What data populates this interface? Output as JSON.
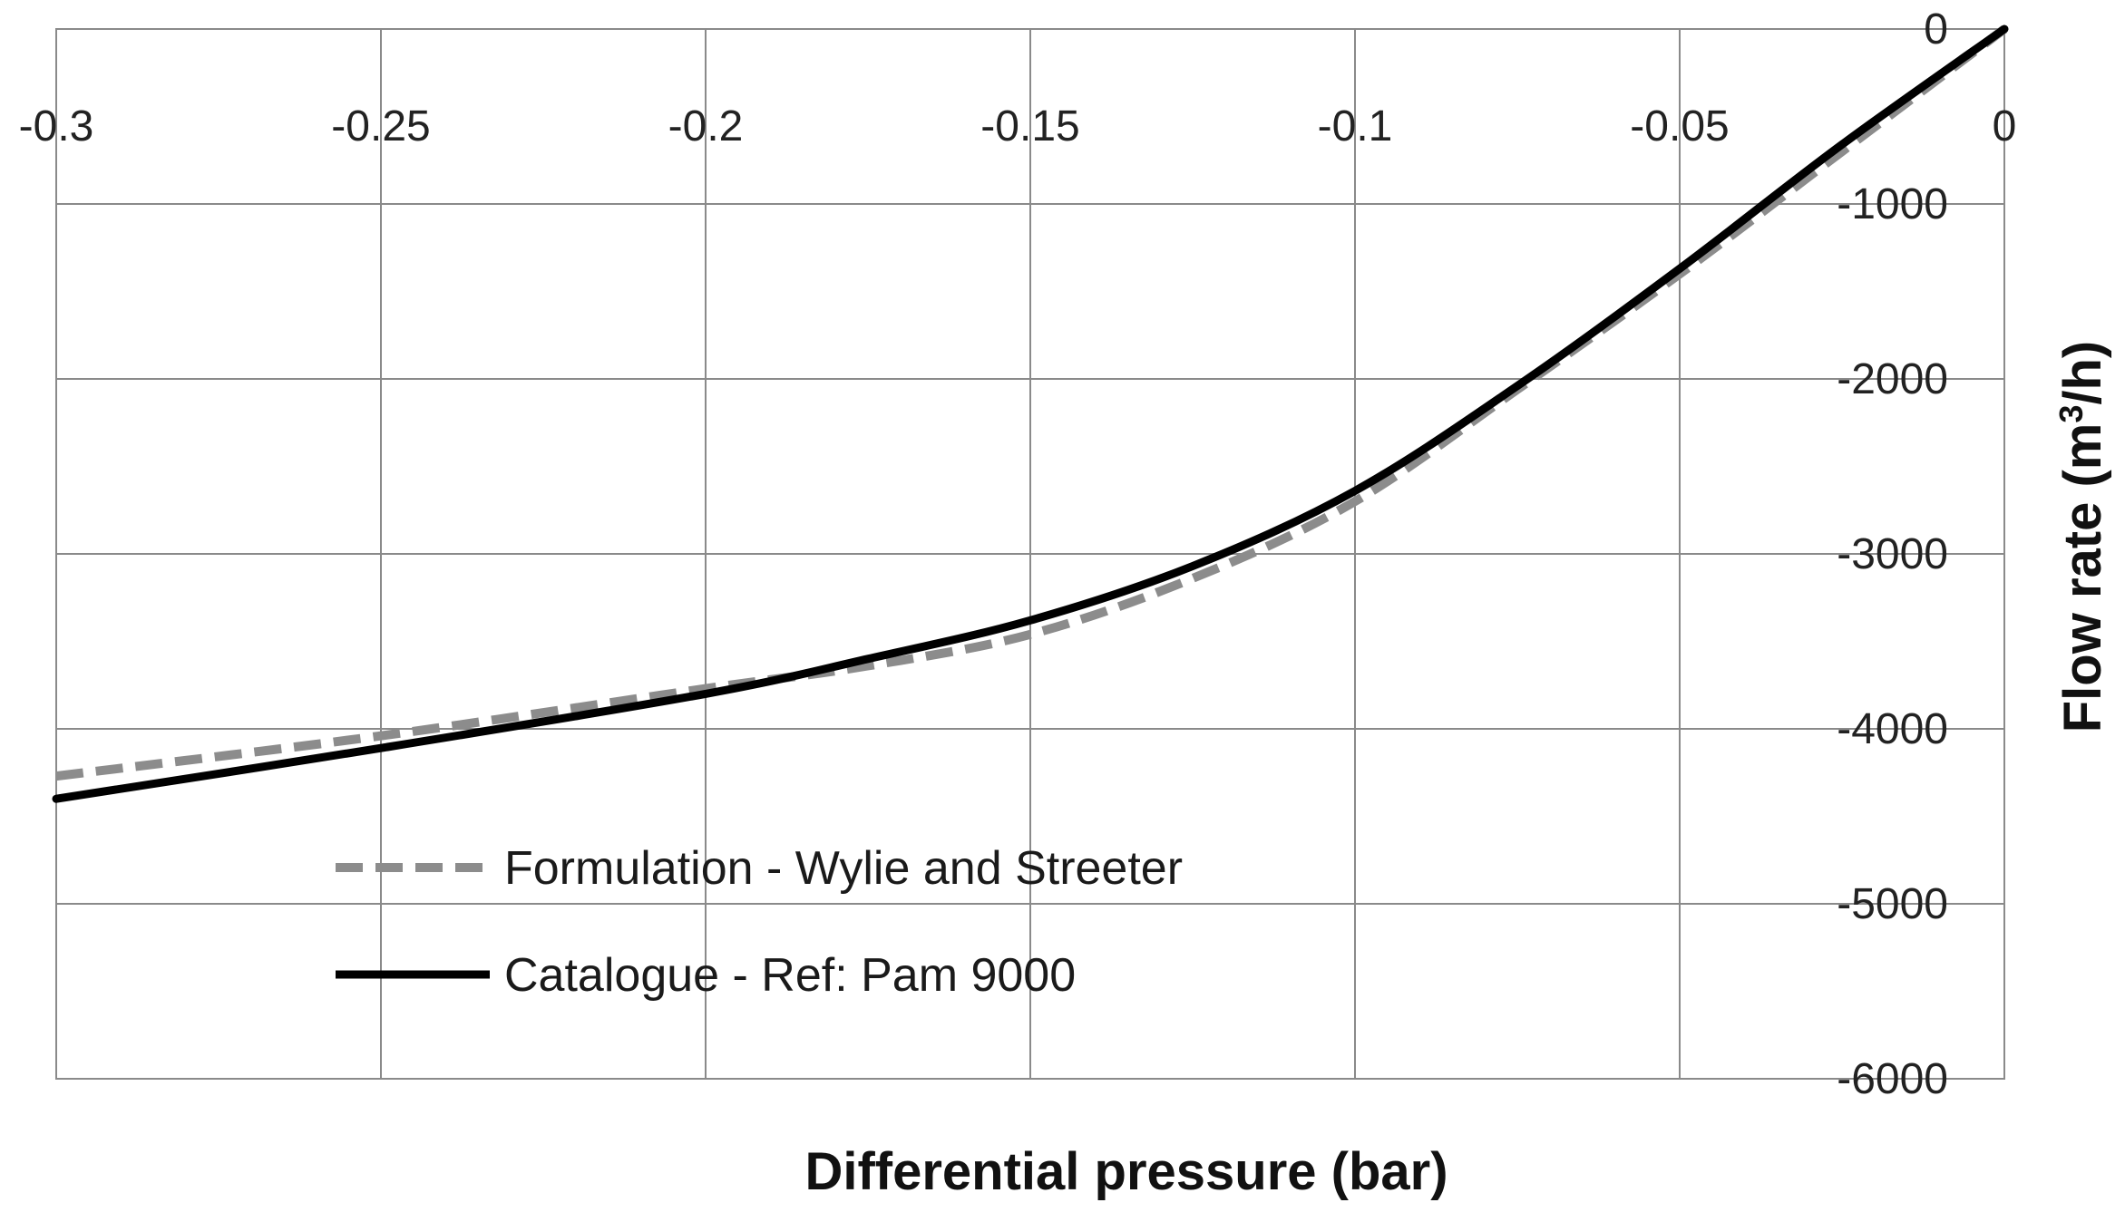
{
  "chart_data": {
    "type": "line",
    "title": "",
    "xlabel": "Differential pressure (bar)",
    "ylabel": "Flow rate (m³/h)",
    "ylabel_parts": {
      "prefix": "Flow rate (m",
      "superscript": "3",
      "suffix": "/h)"
    },
    "xlim": [
      -0.3,
      0
    ],
    "ylim": [
      -6000,
      0
    ],
    "x_ticks": [
      -0.3,
      -0.25,
      -0.2,
      -0.15,
      -0.1,
      -0.05,
      0
    ],
    "x_tick_labels": [
      "-0.3",
      "-0.25",
      "-0.2",
      "-0.15",
      "-0.1",
      "-0.05",
      "0"
    ],
    "y_ticks": [
      0,
      -1000,
      -2000,
      -3000,
      -4000,
      -5000,
      -6000
    ],
    "y_tick_labels": [
      "0",
      "-1000",
      "-2000",
      "-3000",
      "-4000",
      "-5000",
      "-6000"
    ],
    "grid": true,
    "legend_position": "bottom-left",
    "series": [
      {
        "name": "Formulation - Wylie and Streeter",
        "style": "dashed",
        "color": "#8c8c8c",
        "x": [
          -0.3,
          -0.25,
          -0.2,
          -0.175,
          -0.15,
          -0.125,
          -0.1,
          -0.075,
          -0.05,
          -0.025,
          0
        ],
        "y": [
          -4270,
          -4040,
          -3770,
          -3640,
          -3460,
          -3140,
          -2700,
          -2060,
          -1400,
          -700,
          0
        ]
      },
      {
        "name": "Catalogue - Ref:  Pam 9000",
        "style": "solid",
        "color": "#000000",
        "x": [
          -0.3,
          -0.25,
          -0.2,
          -0.175,
          -0.15,
          -0.125,
          -0.1,
          -0.075,
          -0.05,
          -0.025,
          0
        ],
        "y": [
          -4400,
          -4110,
          -3800,
          -3600,
          -3380,
          -3070,
          -2640,
          -2040,
          -1370,
          -660,
          0
        ]
      }
    ]
  }
}
